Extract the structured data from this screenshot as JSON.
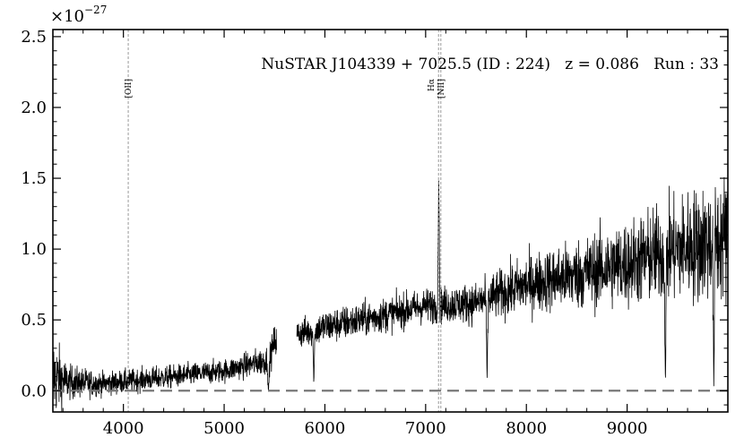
{
  "chart_data": {
    "type": "line",
    "title": "",
    "xlabel": "",
    "ylabel": "",
    "y_scale_label": "×10",
    "y_scale_exponent": "−27",
    "xlim": [
      3300,
      10000
    ],
    "ylim": [
      -0.15,
      2.55
    ],
    "x_ticks": [
      4000,
      5000,
      6000,
      7000,
      8000,
      9000
    ],
    "x_tick_labels": [
      "4000",
      "5000",
      "6000",
      "7000",
      "8000",
      "9000"
    ],
    "y_ticks": [
      0.0,
      0.5,
      1.0,
      1.5,
      2.0,
      2.5
    ],
    "y_tick_labels": [
      "0.0",
      "0.5",
      "1.0",
      "1.5",
      "2.0",
      "2.5"
    ],
    "annotation": "NuSTAR J104339 + 7025.5 (ID : 224)   z = 0.086   Run : 33",
    "emission_lines": [
      {
        "label": "[OII]",
        "x": 4048
      },
      {
        "label": "Hα",
        "x": 7128
      },
      {
        "label": "[NII]",
        "x": 7151
      }
    ],
    "zero_line": 0.0,
    "grid": false,
    "legend": "none",
    "spectrum_profile": [
      {
        "x": 3300,
        "y": 0.1,
        "noise": 0.3
      },
      {
        "x": 3450,
        "y": 0.06,
        "noise": 0.12
      },
      {
        "x": 3800,
        "y": 0.05,
        "noise": 0.08
      },
      {
        "x": 4500,
        "y": 0.1,
        "noise": 0.08
      },
      {
        "x": 5000,
        "y": 0.14,
        "noise": 0.08
      },
      {
        "x": 5450,
        "y": 0.22,
        "noise": 0.1
      },
      {
        "x": 5500,
        "y": 0.35,
        "noise": 0.12
      },
      {
        "x": 5720,
        "y": 0.4,
        "noise": 0.1
      },
      {
        "x": 6000,
        "y": 0.45,
        "noise": 0.12
      },
      {
        "x": 6500,
        "y": 0.52,
        "noise": 0.12
      },
      {
        "x": 7000,
        "y": 0.6,
        "noise": 0.12
      },
      {
        "x": 7500,
        "y": 0.62,
        "noise": 0.14
      },
      {
        "x": 8000,
        "y": 0.75,
        "noise": 0.2
      },
      {
        "x": 8500,
        "y": 0.82,
        "noise": 0.24
      },
      {
        "x": 9000,
        "y": 0.9,
        "noise": 0.3
      },
      {
        "x": 9500,
        "y": 1.0,
        "noise": 0.36
      },
      {
        "x": 10000,
        "y": 1.08,
        "noise": 0.45
      }
    ],
    "spectrum_gap": [
      5520,
      5720
    ],
    "spectrum_features": [
      {
        "x": 7130,
        "y": 1.5
      },
      {
        "x": 7610,
        "y": 0.08
      },
      {
        "x": 5890,
        "y": 0.05
      },
      {
        "x": 5440,
        "y": -0.02
      },
      {
        "x": 9380,
        "y": 0.02
      },
      {
        "x": 9860,
        "y": 0.0
      }
    ]
  }
}
